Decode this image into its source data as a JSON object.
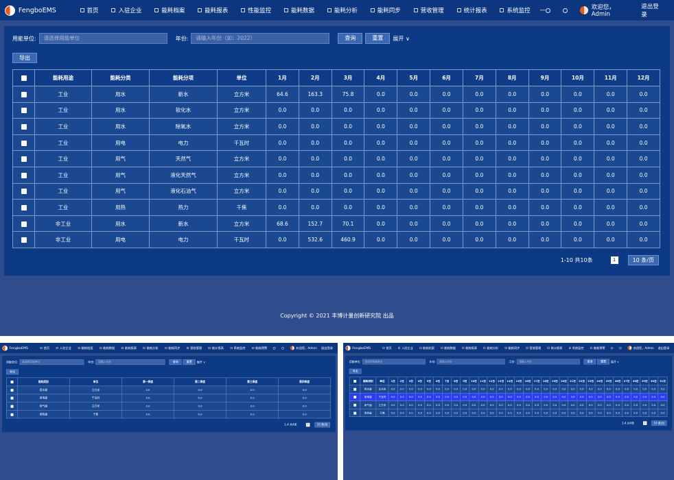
{
  "main": {
    "nav": {
      "brand": "FengboEMS",
      "items": [
        "首页",
        "入驻企业",
        "能耗档案",
        "能耗报表",
        "性能监控",
        "能耗数据",
        "能耗分析",
        "能耗同步",
        "营收管理",
        "统计报表",
        "系统监控"
      ],
      "more": "—",
      "user": "欢迎您，Admin",
      "logout": "退出登录"
    },
    "filters": {
      "fields": [
        {
          "label": "用能单位:",
          "placeholder": "请选择用能单位"
        },
        {
          "label": "年份:",
          "placeholder": "请输入年份（如：2022）"
        }
      ],
      "search": "查询",
      "reset": "重置",
      "expand": "展开"
    },
    "export": "导出",
    "table": {
      "headers": [
        "能耗用途",
        "能耗分类",
        "能耗分项",
        "单位",
        "1月",
        "2月",
        "3月",
        "4月",
        "5月",
        "6月",
        "7月",
        "8月",
        "9月",
        "10月",
        "11月",
        "12月"
      ],
      "rows": [
        [
          "工业",
          "用水",
          "新水",
          "立方米",
          "64.6",
          "163.3",
          "75.8",
          "0.0",
          "0.0",
          "0.0",
          "0.0",
          "0.0",
          "0.0",
          "0.0",
          "0.0",
          "0.0"
        ],
        [
          "工业",
          "用水",
          "软化水",
          "立方米",
          "0.0",
          "0.0",
          "0.0",
          "0.0",
          "0.0",
          "0.0",
          "0.0",
          "0.0",
          "0.0",
          "0.0",
          "0.0",
          "0.0"
        ],
        [
          "工业",
          "用水",
          "除氧水",
          "立方米",
          "0.0",
          "0.0",
          "0.0",
          "0.0",
          "0.0",
          "0.0",
          "0.0",
          "0.0",
          "0.0",
          "0.0",
          "0.0",
          "0.0"
        ],
        [
          "工业",
          "用电",
          "电力",
          "千瓦时",
          "0.0",
          "0.0",
          "0.0",
          "0.0",
          "0.0",
          "0.0",
          "0.0",
          "0.0",
          "0.0",
          "0.0",
          "0.0",
          "0.0"
        ],
        [
          "工业",
          "用气",
          "天然气",
          "立方米",
          "0.0",
          "0.0",
          "0.0",
          "0.0",
          "0.0",
          "0.0",
          "0.0",
          "0.0",
          "0.0",
          "0.0",
          "0.0",
          "0.0"
        ],
        [
          "工业",
          "用气",
          "液化天然气",
          "立方米",
          "0.0",
          "0.0",
          "0.0",
          "0.0",
          "0.0",
          "0.0",
          "0.0",
          "0.0",
          "0.0",
          "0.0",
          "0.0",
          "0.0"
        ],
        [
          "工业",
          "用气",
          "液化石油气",
          "立方米",
          "0.0",
          "0.0",
          "0.0",
          "0.0",
          "0.0",
          "0.0",
          "0.0",
          "0.0",
          "0.0",
          "0.0",
          "0.0",
          "0.0"
        ],
        [
          "工业",
          "用热",
          "热力",
          "千焦",
          "0.0",
          "0.0",
          "0.0",
          "0.0",
          "0.0",
          "0.0",
          "0.0",
          "0.0",
          "0.0",
          "0.0",
          "0.0",
          "0.0"
        ],
        [
          "非工业",
          "用水",
          "新水",
          "立方米",
          "68.6",
          "152.7",
          "70.1",
          "0.0",
          "0.0",
          "0.0",
          "0.0",
          "0.0",
          "0.0",
          "0.0",
          "0.0",
          "0.0"
        ],
        [
          "非工业",
          "用电",
          "电力",
          "千瓦时",
          "0.0",
          "532.6",
          "460.9",
          "0.0",
          "0.0",
          "0.0",
          "0.0",
          "0.0",
          "0.0",
          "0.0",
          "0.0",
          "0.0"
        ]
      ]
    },
    "pagination": {
      "summary": "1-10 共10条",
      "page": "1",
      "size": "10 条/页"
    },
    "footer": "Copyright © 2021 丰博计量创新研究院 出品"
  },
  "left": {
    "nav": {
      "brand": "FengboEMS",
      "items": [
        "首页",
        "入驻企业",
        "能耗档案",
        "能耗数据",
        "能耗报表",
        "能耗分析",
        "能耗同步",
        "营收管理",
        "统计报表",
        "系统监控",
        "能耗预警"
      ],
      "user": "欢迎您，Admin",
      "logout": "退出登录"
    },
    "filters": {
      "fields": [
        {
          "label": "用能单位:",
          "placeholder": "请选择用能单位"
        },
        {
          "label": "年份:",
          "placeholder": "请输入年份"
        }
      ],
      "search": "查询",
      "reset": "重置",
      "expand": "展开"
    },
    "export": "导出",
    "table": {
      "headers": [
        "能耗类别",
        "单位",
        "第一季度",
        "第二季度",
        "第三季度",
        "第四季度"
      ],
      "rows": [
        [
          "用水量",
          "立方米",
          "0.0",
          "0.0",
          "0.0",
          "0.0"
        ],
        [
          "用电量",
          "千瓦时",
          "0.0",
          "0.0",
          "0.0",
          "0.0"
        ],
        [
          "用气量",
          "立方米",
          "0.0",
          "0.0",
          "0.0",
          "0.0"
        ],
        [
          "用热量",
          "千焦",
          "0.0",
          "0.0",
          "0.0",
          "0.0"
        ]
      ]
    },
    "pagination": {
      "summary": "1-4 共4条",
      "page": "1",
      "size": "10 条/页"
    }
  },
  "right": {
    "nav": {
      "brand": "FengboEMS",
      "items": [
        "首页",
        "入驻企业",
        "能耗档案",
        "能耗数据",
        "能耗报表",
        "能耗分析",
        "能耗同步",
        "营收管理",
        "统计报表",
        "系统监控",
        "能耗预警"
      ],
      "user": "欢迎您，Admin",
      "logout": "退出登录"
    },
    "filters": {
      "fields": [
        {
          "label": "用能单位:",
          "placeholder": "请选择用能单位"
        },
        {
          "label": "年份:",
          "placeholder": "请输入年份"
        },
        {
          "label": "月份:",
          "placeholder": "请输入月份"
        }
      ],
      "search": "查询",
      "reset": "重置",
      "expand": "展开"
    },
    "export": "导出",
    "table": {
      "headers": [
        "能耗类别",
        "单位",
        "1日",
        "2日",
        "3日",
        "4日",
        "5日",
        "6日",
        "7日",
        "8日",
        "9日",
        "10日",
        "11日",
        "12日",
        "13日",
        "14日",
        "15日",
        "16日",
        "17日",
        "18日",
        "19日",
        "20日",
        "21日",
        "22日",
        "23日",
        "24日",
        "25日",
        "26日",
        "27日",
        "28日",
        "29日",
        "30日",
        "31日"
      ],
      "selected_row": 1,
      "rows": [
        [
          "用水量",
          "立方米",
          "0.0",
          "0.0",
          "0.0",
          "0.0",
          "0.0",
          "0.0",
          "0.0",
          "0.0",
          "0.0",
          "0.0",
          "0.0",
          "0.0",
          "0.0",
          "0.0",
          "0.0",
          "0.0",
          "0.0",
          "0.0",
          "0.0",
          "0.0",
          "0.0",
          "0.0",
          "0.0",
          "0.0",
          "0.0",
          "0.0",
          "0.0",
          "0.0",
          "0.0",
          "0.0",
          "0.0"
        ],
        [
          "用电量",
          "千瓦时",
          "0.0",
          "0.0",
          "0.0",
          "0.0",
          "0.0",
          "0.0",
          "0.0",
          "0.0",
          "0.0",
          "0.0",
          "0.0",
          "0.0",
          "0.0",
          "0.0",
          "0.0",
          "0.0",
          "0.0",
          "0.0",
          "0.0",
          "0.0",
          "0.0",
          "0.0",
          "0.0",
          "0.0",
          "0.0",
          "0.0",
          "0.0",
          "0.0",
          "0.0",
          "0.0",
          "0.0"
        ],
        [
          "用气量",
          "立方米",
          "0.0",
          "0.0",
          "0.0",
          "0.0",
          "0.0",
          "0.0",
          "0.0",
          "0.0",
          "0.0",
          "0.0",
          "0.0",
          "0.0",
          "0.0",
          "0.0",
          "0.0",
          "0.0",
          "0.0",
          "0.0",
          "0.0",
          "0.0",
          "0.0",
          "0.0",
          "0.0",
          "0.0",
          "0.0",
          "0.0",
          "0.0",
          "0.0",
          "0.0",
          "0.0",
          "0.0"
        ],
        [
          "用热量",
          "千焦",
          "0.0",
          "0.0",
          "0.0",
          "0.0",
          "0.0",
          "0.0",
          "0.0",
          "0.0",
          "0.0",
          "0.0",
          "0.0",
          "0.0",
          "0.0",
          "0.0",
          "0.0",
          "0.0",
          "0.0",
          "0.0",
          "0.0",
          "0.0",
          "0.0",
          "0.0",
          "0.0",
          "0.0",
          "0.0",
          "0.0",
          "0.0",
          "0.0",
          "0.0",
          "0.0",
          "0.0"
        ]
      ]
    },
    "pagination": {
      "summary": "1-4 共4条",
      "page": "1",
      "size": "10 条/页"
    }
  }
}
